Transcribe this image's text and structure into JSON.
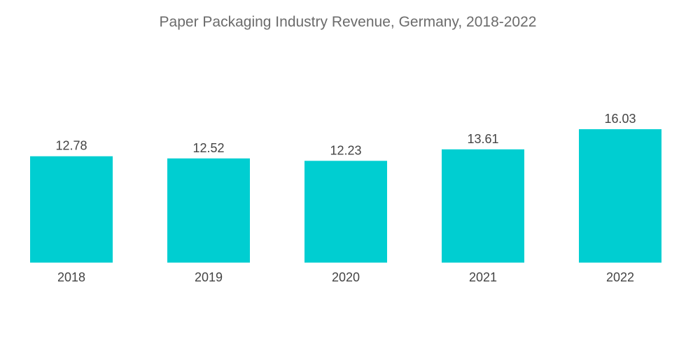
{
  "chart_data": {
    "type": "bar",
    "title": "Paper Packaging Industry Revenue, Germany, 2018-2022",
    "xlabel": "",
    "ylabel": "",
    "categories": [
      "2018",
      "2019",
      "2020",
      "2021",
      "2022"
    ],
    "values": [
      12.78,
      12.52,
      12.23,
      13.61,
      16.03
    ],
    "data_labels": [
      "12.78",
      "12.52",
      "12.23",
      "13.61",
      "16.03"
    ],
    "ylim": [
      0,
      16.03
    ],
    "grid": false,
    "legend": "none",
    "bar_color": "#00ced1"
  }
}
